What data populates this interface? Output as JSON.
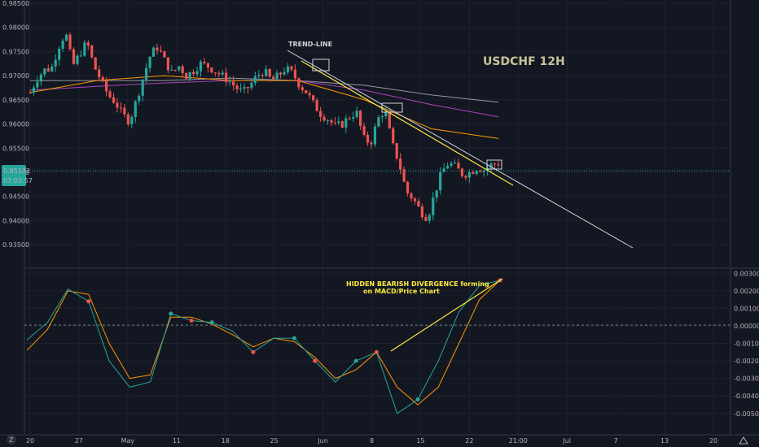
{
  "chart_data": {
    "type": "candlestick",
    "title": "USDCHF 12H",
    "colors": {
      "up": "#26a69a",
      "down": "#ef5350",
      "macd": "#26a69a",
      "signal": "#ff9800",
      "background": "#131722",
      "grid": "#2a2e39",
      "trendline": "#d1d4dc",
      "annotation": "#ffeb3b",
      "price_marker": "#26a69a"
    },
    "price_axis": {
      "ylim": [
        0.9325,
        0.985
      ],
      "ticks": [
        "0.98500",
        "0.98000",
        "0.97500",
        "0.97000",
        "0.96500",
        "0.96000",
        "0.95500",
        "0.95000",
        "0.94500",
        "0.94000",
        "0.93500"
      ]
    },
    "macd_axis": {
      "ylim": [
        -0.0058,
        0.0032
      ],
      "ticks": [
        "0.00300",
        "0.00200",
        "0.00100",
        "0.00000",
        "-0.00100",
        "-0.00200",
        "-0.00300",
        "-0.00400",
        "-0.00500"
      ]
    },
    "time_axis": {
      "labels": [
        "20",
        "27",
        "May",
        "11",
        "18",
        "25",
        "Jun",
        "8",
        "15",
        "22",
        "21:00",
        "Jul",
        "7",
        "13",
        "20"
      ]
    },
    "current_price": {
      "value": 0.95192,
      "label": "0.95192",
      "countdown": "07:03:57"
    },
    "price_path": [
      0.9665,
      0.9695,
      0.9712,
      0.9715,
      0.976,
      0.979,
      0.972,
      0.9745,
      0.977,
      0.972,
      0.969,
      0.966,
      0.9645,
      0.962,
      0.9605,
      0.965,
      0.97,
      0.9745,
      0.976,
      0.973,
      0.9705,
      0.972,
      0.97,
      0.971,
      0.9725,
      0.972,
      0.971,
      0.97,
      0.969,
      0.9675,
      0.9665,
      0.968,
      0.97,
      0.971,
      0.969,
      0.97,
      0.9715,
      0.9705,
      0.968,
      0.9665,
      0.964,
      0.962,
      0.961,
      0.9595,
      0.96,
      0.9615,
      0.9625,
      0.957,
      0.956,
      0.961,
      0.963,
      0.956,
      0.952,
      0.946,
      0.9445,
      0.942,
      0.9405,
      0.9455,
      0.95,
      0.952,
      0.951,
      0.9495,
      0.95,
      0.951,
      0.9505,
      0.9515,
      0.9519
    ],
    "ema_lines": [
      {
        "color": "#9598a1",
        "values": [
          0.969,
          0.969,
          0.969,
          0.9695,
          0.969,
          0.968,
          0.966,
          0.9645
        ]
      },
      {
        "color": "#ab47bc",
        "values": [
          0.967,
          0.9678,
          0.9685,
          0.969,
          0.969,
          0.967,
          0.964,
          0.9615
        ]
      },
      {
        "color": "#ff9800",
        "values": [
          0.9665,
          0.969,
          0.97,
          0.969,
          0.969,
          0.965,
          0.959,
          0.957
        ]
      }
    ],
    "macd": {
      "macd_line": [
        -0.0008,
        0.0002,
        0.0021,
        0.0014,
        -0.002,
        -0.0035,
        -0.0032,
        0.0007,
        0.0003,
        0.0002,
        -0.0003,
        -0.0015,
        -0.0007,
        -0.0007,
        -0.002,
        -0.0032,
        -0.002,
        -0.0015,
        -0.005,
        -0.0042,
        -0.002,
        0.0008,
        0.0023,
        0.0026
      ],
      "signal_line": [
        -0.0014,
        -0.0002,
        0.002,
        0.0018,
        -0.001,
        -0.003,
        -0.0028,
        0.0005,
        0.0005,
        0.0001,
        -0.0005,
        -0.0012,
        -0.0007,
        -0.0009,
        -0.0018,
        -0.003,
        -0.0025,
        -0.0015,
        -0.0035,
        -0.0045,
        -0.0035,
        -0.001,
        0.0015,
        0.0026
      ]
    },
    "annotations": {
      "trend_label": "TREND-LINE",
      "divergence_label_1": "HIDDEN BEARISH DIVERGENCE forming",
      "divergence_label_2": "on MACD/Price Chart"
    },
    "logo_text": "Z"
  }
}
